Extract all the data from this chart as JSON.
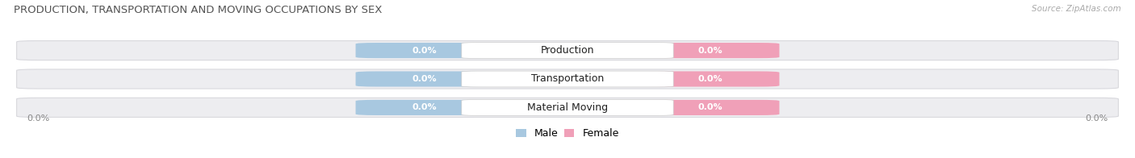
{
  "title": "PRODUCTION, TRANSPORTATION AND MOVING OCCUPATIONS BY SEX",
  "source": "Source: ZipAtlas.com",
  "categories": [
    "Production",
    "Transportation",
    "Material Moving"
  ],
  "male_values": [
    0.0,
    0.0,
    0.0
  ],
  "female_values": [
    0.0,
    0.0,
    0.0
  ],
  "male_color": "#a8c8e0",
  "female_color": "#f0a0b8",
  "male_label": "Male",
  "female_label": "Female",
  "bar_bg_color": "#ededf0",
  "figsize": [
    14.06,
    1.96
  ],
  "dpi": 100,
  "title_fontsize": 9.5,
  "cat_fontsize": 9,
  "value_fontsize": 8,
  "legend_fontsize": 9,
  "source_fontsize": 7.5,
  "bg_color": "#ffffff",
  "axis_label_color": "#888888",
  "title_color": "#555555",
  "source_color": "#aaaaaa"
}
